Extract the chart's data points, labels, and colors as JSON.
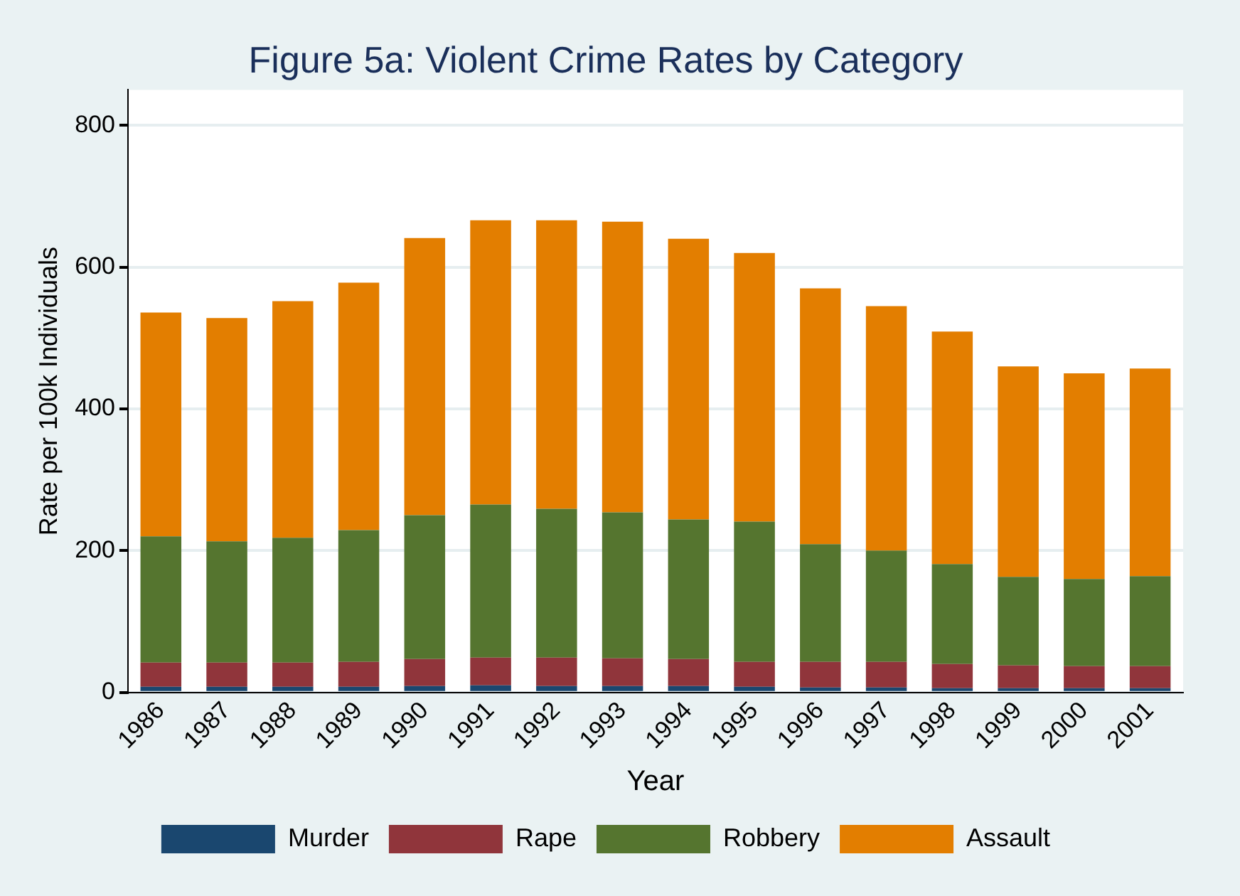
{
  "chart_data": {
    "type": "bar",
    "title": "Figure 5a: Violent Crime Rates by Category",
    "xlabel": "Year",
    "ylabel": "Rate per 100k Individuals",
    "categories": [
      "1986",
      "1987",
      "1988",
      "1989",
      "1990",
      "1991",
      "1992",
      "1993",
      "1994",
      "1995",
      "1996",
      "1997",
      "1998",
      "1999",
      "2000",
      "2001"
    ],
    "series": [
      {
        "name": "Murder",
        "color": "#1a476f",
        "values": [
          8,
          8,
          8,
          8,
          9,
          10,
          9,
          9,
          9,
          8,
          7,
          7,
          6,
          6,
          6,
          6
        ]
      },
      {
        "name": "Rape",
        "color": "#90353b",
        "values": [
          34,
          34,
          34,
          35,
          38,
          39,
          40,
          39,
          38,
          35,
          36,
          36,
          34,
          32,
          31,
          31
        ]
      },
      {
        "name": "Robbery",
        "color": "#55752f",
        "values": [
          178,
          171,
          176,
          186,
          203,
          216,
          210,
          206,
          197,
          198,
          166,
          157,
          141,
          125,
          123,
          127
        ]
      },
      {
        "name": "Assault",
        "color": "#e37e00",
        "values": [
          316,
          315,
          334,
          349,
          391,
          401,
          407,
          410,
          396,
          379,
          361,
          345,
          328,
          297,
          290,
          293
        ]
      }
    ],
    "stacked": true,
    "ylim": [
      0,
      850
    ],
    "yticks": [
      0,
      200,
      400,
      600,
      800
    ],
    "grid": "y",
    "legend": "bottom"
  }
}
